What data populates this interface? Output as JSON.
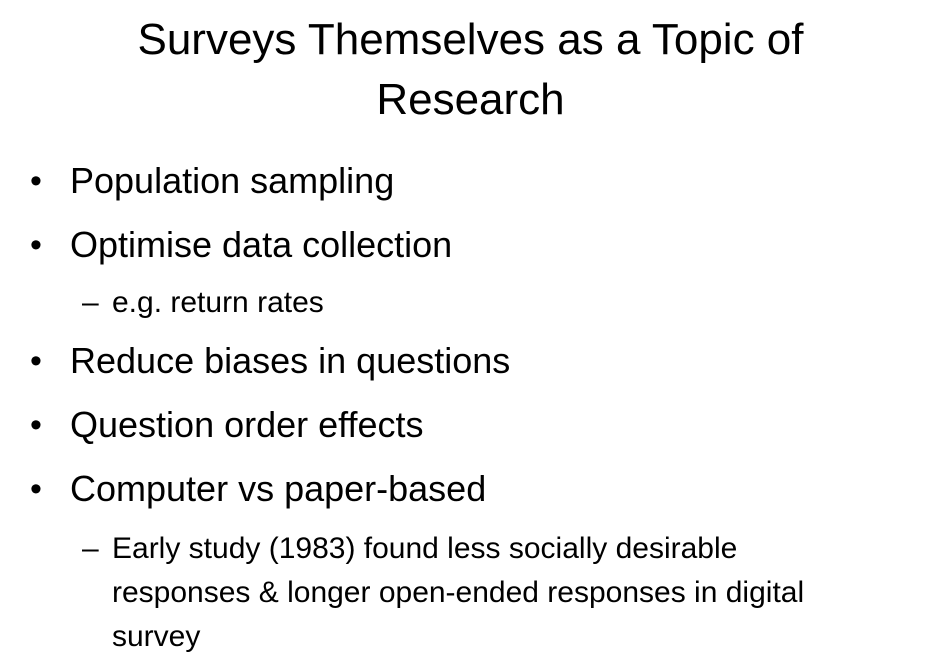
{
  "title": "Surveys Themselves as a Topic of Research",
  "bullets": [
    {
      "text": "Population sampling"
    },
    {
      "text": "Optimise data collection",
      "sub": "e.g. return rates"
    },
    {
      "text": "Reduce biases in questions"
    },
    {
      "text": "Question order effects"
    },
    {
      "text": "Computer vs paper-based",
      "sub": "Early study (1983) found less socially desirable responses & longer open-ended responses in digital survey"
    }
  ],
  "bullet_glyph": "•",
  "dash_glyph": "–"
}
